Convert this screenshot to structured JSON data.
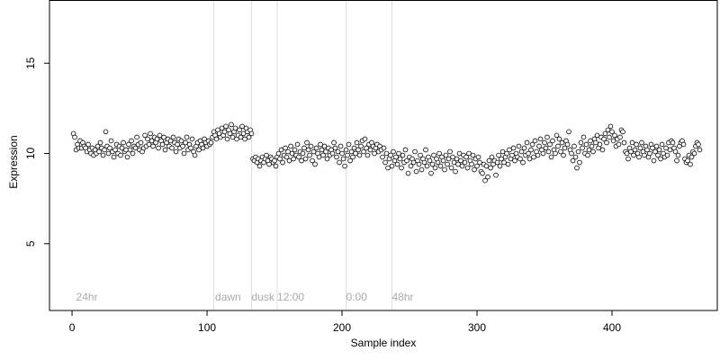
{
  "chart_data": {
    "type": "scatter",
    "xlabel": "Sample index",
    "ylabel": "Expression",
    "xlim": [
      -16.7,
      478
    ],
    "ylim": [
      1.3,
      18.5
    ],
    "xticks": [
      0,
      100,
      200,
      300,
      400
    ],
    "yticks": [
      5,
      10,
      15
    ],
    "marker_color": "#ffffff",
    "marker_edge": "#000000",
    "vline_color": "#dddddd",
    "annotation_color": "#aaaaaa",
    "annotations": [
      {
        "text": "24hr",
        "x": 3,
        "y": 2.0
      },
      {
        "text": "dawn",
        "x": 106,
        "y": 2.0
      },
      {
        "text": "dusk",
        "x": 133,
        "y": 2.0
      },
      {
        "text": "12:00",
        "x": 152,
        "y": 2.0
      },
      {
        "text": "0:00",
        "x": 203,
        "y": 2.0
      },
      {
        "text": "48hr",
        "x": 237,
        "y": 2.0
      }
    ],
    "vlines": [
      105,
      133,
      152,
      203,
      237
    ],
    "x": [
      1,
      2,
      3,
      4,
      5,
      6,
      7,
      8,
      9,
      10,
      11,
      12,
      13,
      14,
      15,
      16,
      17,
      18,
      19,
      20,
      21,
      22,
      23,
      24,
      25,
      26,
      27,
      28,
      29,
      30,
      31,
      32,
      33,
      34,
      35,
      36,
      37,
      38,
      39,
      40,
      41,
      42,
      43,
      44,
      45,
      46,
      47,
      48,
      49,
      50,
      51,
      52,
      53,
      54,
      55,
      56,
      57,
      58,
      59,
      60,
      61,
      62,
      63,
      64,
      65,
      66,
      67,
      68,
      69,
      70,
      71,
      72,
      73,
      74,
      75,
      76,
      77,
      78,
      79,
      80,
      81,
      82,
      83,
      84,
      85,
      86,
      87,
      88,
      89,
      90,
      91,
      92,
      93,
      94,
      95,
      96,
      97,
      98,
      99,
      100,
      101,
      102,
      103,
      104,
      105,
      106,
      107,
      108,
      109,
      110,
      111,
      112,
      113,
      114,
      115,
      116,
      117,
      118,
      119,
      120,
      121,
      122,
      123,
      124,
      125,
      126,
      127,
      128,
      129,
      130,
      131,
      132,
      133,
      134,
      135,
      136,
      137,
      138,
      139,
      140,
      141,
      142,
      143,
      144,
      145,
      146,
      147,
      148,
      149,
      150,
      151,
      152,
      153,
      154,
      155,
      156,
      157,
      158,
      159,
      160,
      161,
      162,
      163,
      164,
      165,
      166,
      167,
      168,
      169,
      170,
      171,
      172,
      173,
      174,
      175,
      176,
      177,
      178,
      179,
      180,
      181,
      182,
      183,
      184,
      185,
      186,
      187,
      188,
      189,
      190,
      191,
      192,
      193,
      194,
      195,
      196,
      197,
      198,
      199,
      200,
      201,
      202,
      203,
      204,
      205,
      206,
      207,
      208,
      209,
      210,
      211,
      212,
      213,
      214,
      215,
      216,
      217,
      218,
      219,
      220,
      221,
      222,
      223,
      224,
      225,
      226,
      227,
      228,
      229,
      230,
      231,
      232,
      233,
      234,
      235,
      236,
      237,
      238,
      239,
      240,
      241,
      242,
      243,
      244,
      245,
      246,
      247,
      248,
      249,
      250,
      251,
      252,
      253,
      254,
      255,
      256,
      257,
      258,
      259,
      260,
      261,
      262,
      263,
      264,
      265,
      266,
      267,
      268,
      269,
      270,
      271,
      272,
      273,
      274,
      275,
      276,
      277,
      278,
      279,
      280,
      281,
      282,
      283,
      284,
      285,
      286,
      287,
      288,
      289,
      290,
      291,
      292,
      293,
      294,
      295,
      296,
      297,
      298,
      299,
      300,
      301,
      302,
      303,
      304,
      305,
      306,
      307,
      308,
      309,
      310,
      311,
      312,
      313,
      314,
      315,
      316,
      317,
      318,
      319,
      320,
      321,
      322,
      323,
      324,
      325,
      326,
      327,
      328,
      329,
      330,
      331,
      332,
      333,
      334,
      335,
      336,
      337,
      338,
      339,
      340,
      341,
      342,
      343,
      344,
      345,
      346,
      347,
      348,
      349,
      350,
      351,
      352,
      353,
      354,
      355,
      356,
      357,
      358,
      359,
      360,
      361,
      362,
      363,
      364,
      365,
      366,
      367,
      368,
      369,
      370,
      371,
      372,
      373,
      374,
      375,
      376,
      377,
      378,
      379,
      380,
      381,
      382,
      383,
      384,
      385,
      386,
      387,
      388,
      389,
      390,
      391,
      392,
      393,
      394,
      395,
      396,
      397,
      398,
      399,
      400,
      401,
      402,
      403,
      404,
      405,
      406,
      407,
      408,
      409,
      410,
      411,
      412,
      413,
      414,
      415,
      416,
      417,
      418,
      419,
      420,
      421,
      422,
      423,
      424,
      425,
      426,
      427,
      428,
      429,
      430,
      431,
      432,
      433,
      434,
      435,
      436,
      437,
      438,
      439,
      440,
      441,
      442,
      443,
      444,
      445,
      446,
      447,
      448,
      449,
      450,
      451,
      452,
      453,
      454,
      455,
      456,
      457,
      458,
      459,
      460,
      461,
      462,
      463,
      464,
      465
    ],
    "values": [
      11.1,
      10.9,
      10.2,
      10.5,
      10.3,
      10.7,
      10.3,
      10.6,
      10.4,
      10.3,
      10.1,
      10.5,
      10.2,
      10.0,
      10.3,
      9.9,
      10.2,
      10.0,
      10.4,
      10.1,
      10.6,
      10.3,
      9.9,
      10.2,
      11.2,
      10.4,
      10.0,
      10.3,
      10.7,
      10.1,
      9.8,
      10.2,
      10.5,
      10.0,
      10.4,
      9.9,
      10.3,
      10.6,
      10.1,
      10.2,
      9.8,
      10.5,
      10.2,
      10.7,
      10.0,
      10.4,
      10.3,
      10.9,
      10.5,
      10.2,
      10.6,
      10.1,
      10.3,
      11.0,
      10.4,
      10.8,
      10.5,
      11.1,
      10.7,
      10.4,
      10.9,
      10.6,
      10.8,
      10.3,
      11.0,
      10.7,
      10.5,
      10.9,
      10.2,
      10.6,
      10.8,
      10.4,
      10.7,
      10.3,
      10.9,
      10.6,
      10.1,
      10.5,
      10.8,
      10.3,
      10.7,
      10.4,
      10.0,
      10.6,
      10.9,
      10.2,
      10.5,
      10.3,
      10.8,
      10.1,
      9.9,
      10.4,
      10.6,
      10.2,
      10.7,
      10.5,
      10.3,
      10.8,
      10.6,
      10.4,
      10.7,
      10.5,
      10.6,
      10.9,
      11.2,
      11.0,
      10.8,
      11.3,
      11.1,
      10.9,
      11.4,
      11.0,
      11.2,
      11.5,
      10.8,
      11.3,
      11.1,
      11.6,
      10.9,
      11.2,
      11.4,
      10.8,
      11.0,
      11.3,
      10.9,
      11.5,
      11.1,
      10.8,
      11.4,
      11.2,
      10.9,
      11.3,
      11.1,
      9.7,
      9.6,
      9.8,
      9.5,
      9.7,
      9.3,
      9.6,
      9.8,
      9.5,
      9.7,
      9.9,
      9.6,
      9.4,
      9.8,
      9.7,
      9.5,
      9.6,
      9.3,
      9.8,
      10.0,
      9.7,
      10.2,
      9.5,
      9.9,
      10.3,
      9.8,
      10.1,
      9.6,
      10.4,
      10.0,
      9.7,
      10.2,
      9.9,
      10.5,
      9.8,
      10.1,
      9.6,
      10.0,
      10.3,
      9.7,
      10.6,
      10.2,
      9.9,
      10.4,
      9.6,
      10.1,
      9.4,
      10.3,
      10.0,
      9.8,
      10.5,
      10.2,
      9.9,
      10.4,
      10.1,
      9.7,
      10.3,
      9.9,
      10.2,
      10.0,
      10.6,
      10.3,
      9.8,
      10.1,
      9.5,
      10.4,
      10.0,
      9.7,
      9.3,
      10.2,
      9.9,
      10.5,
      9.6,
      10.1,
      9.8,
      10.3,
      10.0,
      10.6,
      10.2,
      9.9,
      10.4,
      10.7,
      10.1,
      10.8,
      10.3,
      9.9,
      10.5,
      10.2,
      10.6,
      10.4,
      10.0,
      10.3,
      10.5,
      10.1,
      10.4,
      10.2,
      9.8,
      10.3,
      9.5,
      10.0,
      9.2,
      9.7,
      9.9,
      9.3,
      10.1,
      9.6,
      9.8,
      9.4,
      10.0,
      9.7,
      9.2,
      9.9,
      9.5,
      10.2,
      9.6,
      8.9,
      9.8,
      9.3,
      9.7,
      9.5,
      10.1,
      9.0,
      9.6,
      9.4,
      9.9,
      9.1,
      9.7,
      9.5,
      10.2,
      9.3,
      9.8,
      9.6,
      8.9,
      9.4,
      9.9,
      9.2,
      9.7,
      9.5,
      10.0,
      9.3,
      9.8,
      9.6,
      9.1,
      9.9,
      9.4,
      9.7,
      10.1,
      9.2,
      9.8,
      9.5,
      9.0,
      9.7,
      9.4,
      10.0,
      9.6,
      9.3,
      9.9,
      9.5,
      9.8,
      9.2,
      10.0,
      9.6,
      9.4,
      9.9,
      9.1,
      9.7,
      9.3,
      9.8,
      9.5,
      9.0,
      8.9,
      9.4,
      8.5,
      9.3,
      8.7,
      9.6,
      9.2,
      9.8,
      9.4,
      9.6,
      8.8,
      9.5,
      9.9,
      9.3,
      9.7,
      10.1,
      9.5,
      9.8,
      10.0,
      9.4,
      10.2,
      9.7,
      9.9,
      10.3,
      9.6,
      10.0,
      9.8,
      10.4,
      9.7,
      10.1,
      9.5,
      10.3,
      9.9,
      10.6,
      10.0,
      9.7,
      10.2,
      10.5,
      9.8,
      10.7,
      10.1,
      9.9,
      10.4,
      10.8,
      10.2,
      10.0,
      10.6,
      10.3,
      10.9,
      10.1,
      10.5,
      9.8,
      10.7,
      10.2,
      10.0,
      11.0,
      10.4,
      10.8,
      10.1,
      10.6,
      9.9,
      10.3,
      10.7,
      10.5,
      11.2,
      10.2,
      10.0,
      9.6,
      10.4,
      9.8,
      9.2,
      10.1,
      9.5,
      10.6,
      10.3,
      10.9,
      10.0,
      10.5,
      9.9,
      10.2,
      10.7,
      10.4,
      10.1,
      10.8,
      10.6,
      11.0,
      10.3,
      10.5,
      10.9,
      10.2,
      10.8,
      11.1,
      10.6,
      11.3,
      10.9,
      11.5,
      11.2,
      10.7,
      11.0,
      10.4,
      10.8,
      10.5,
      10.9,
      11.3,
      11.2,
      10.6,
      10.1,
      10.0,
      9.7,
      10.3,
      10.1,
      10.6,
      9.9,
      10.2,
      10.5,
      10.0,
      9.8,
      10.3,
      10.6,
      10.1,
      9.9,
      10.4,
      10.2,
      9.8,
      10.0,
      10.5,
      10.3,
      9.6,
      10.1,
      10.4,
      9.9,
      10.2,
      9.7,
      10.5,
      10.0,
      9.8,
      10.3,
      9.9,
      10.6,
      10.2,
      10.7,
      10.6,
      10.3,
      10.1,
      9.6,
      9.9,
      10.4,
      10.6,
      10.7,
      10.5,
      9.7,
      9.5,
      9.6,
      9.9,
      9.4,
      9.8,
      10.1,
      10.0,
      10.4,
      10.6,
      10.5,
      10.2
    ]
  }
}
